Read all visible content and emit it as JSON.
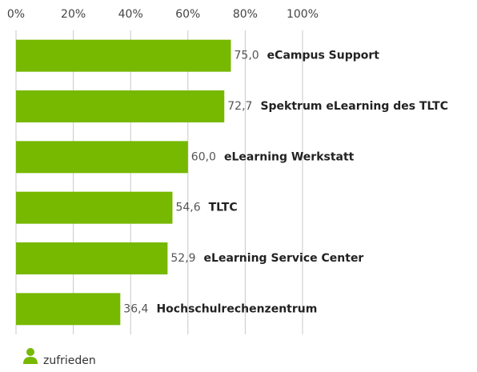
{
  "chart_data": {
    "type": "hbar",
    "categories": [
      "eCampus Support",
      "Spektrum eLearning des TLTC",
      "eLearning Werkstatt",
      "TLTC",
      "eLearning Service Center",
      "Hochschulrechenzentrum"
    ],
    "series": [
      {
        "name": "zufrieden",
        "color": "#77b800",
        "values": [
          75.0,
          72.7,
          60.0,
          54.6,
          52.9,
          36.4
        ],
        "value_labels": [
          "75,0",
          "72,7",
          "60,0",
          "54,6",
          "52,9",
          "36,4"
        ]
      }
    ],
    "xlim": [
      0,
      100
    ],
    "xticks": [
      {
        "value": 0,
        "label": "0%"
      },
      {
        "value": 20,
        "label": "20%"
      },
      {
        "value": 40,
        "label": "40%"
      },
      {
        "value": 60,
        "label": "60%"
      },
      {
        "value": 80,
        "label": "80%"
      },
      {
        "value": 100,
        "label": "100%"
      }
    ],
    "grid": true
  }
}
